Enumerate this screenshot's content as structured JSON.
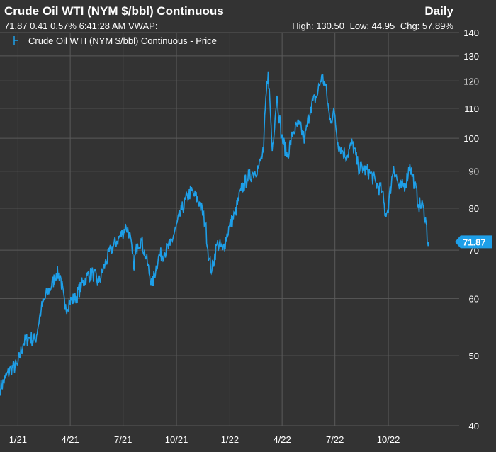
{
  "header": {
    "title": "Crude Oil WTI (NYM $/bbl) Continuous",
    "interval": "Daily",
    "last": "71.87",
    "change": "0.41",
    "change_pct": "0.57%",
    "time": "6:41:28 AM",
    "vwap_label": "VWAP:",
    "high": "High: 130.50",
    "low": "Low: 44.95",
    "chg": "Chg: 57.89%"
  },
  "legend": {
    "label": "Crude Oil WTI (NYM $/bbl) Continuous - Price"
  },
  "colors": {
    "background": "#333333",
    "line": "#1E9FE8",
    "grid": "#5a5a5a",
    "text": "#ffffff"
  },
  "chart_data": {
    "type": "line",
    "y_scale": "log",
    "ylim": [
      40,
      140
    ],
    "y_ticks": [
      40,
      50,
      60,
      70,
      80,
      90,
      100,
      110,
      120,
      130,
      140
    ],
    "x_ticks": [
      "1/21",
      "4/21",
      "7/21",
      "10/21",
      "1/22",
      "4/22",
      "7/22",
      "10/22"
    ],
    "xlim": [
      "2020-12-01",
      "2023-01-31"
    ],
    "last_value_label": "71.87",
    "series": [
      {
        "name": "Crude Oil WTI (NYM $/bbl) Continuous - Price",
        "points": [
          [
            "2020-12-01",
            45.0
          ],
          [
            "2020-12-10",
            46.5
          ],
          [
            "2020-12-20",
            48.0
          ],
          [
            "2020-12-31",
            48.5
          ],
          [
            "2021-01-10",
            52.0
          ],
          [
            "2021-01-20",
            53.0
          ],
          [
            "2021-01-31",
            52.5
          ],
          [
            "2021-02-10",
            58.0
          ],
          [
            "2021-02-20",
            61.0
          ],
          [
            "2021-02-28",
            62.5
          ],
          [
            "2021-03-08",
            65.0
          ],
          [
            "2021-03-15",
            64.5
          ],
          [
            "2021-03-23",
            58.0
          ],
          [
            "2021-03-31",
            59.5
          ],
          [
            "2021-04-10",
            60.0
          ],
          [
            "2021-04-20",
            62.5
          ],
          [
            "2021-04-30",
            64.5
          ],
          [
            "2021-05-10",
            65.0
          ],
          [
            "2021-05-20",
            63.0
          ],
          [
            "2021-05-31",
            67.0
          ],
          [
            "2021-06-10",
            70.0
          ],
          [
            "2021-06-20",
            72.0
          ],
          [
            "2021-06-30",
            74.0
          ],
          [
            "2021-07-06",
            75.5
          ],
          [
            "2021-07-12",
            74.0
          ],
          [
            "2021-07-19",
            66.5
          ],
          [
            "2021-07-26",
            71.5
          ],
          [
            "2021-08-01",
            72.5
          ],
          [
            "2021-08-10",
            68.0
          ],
          [
            "2021-08-20",
            62.5
          ],
          [
            "2021-08-31",
            68.5
          ],
          [
            "2021-09-10",
            69.5
          ],
          [
            "2021-09-20",
            71.0
          ],
          [
            "2021-09-30",
            75.0
          ],
          [
            "2021-10-10",
            79.5
          ],
          [
            "2021-10-20",
            83.0
          ],
          [
            "2021-10-26",
            84.5
          ],
          [
            "2021-10-31",
            83.5
          ],
          [
            "2021-11-10",
            81.5
          ],
          [
            "2021-11-20",
            76.0
          ],
          [
            "2021-11-26",
            68.0
          ],
          [
            "2021-12-01",
            65.5
          ],
          [
            "2021-12-10",
            71.5
          ],
          [
            "2021-12-20",
            70.0
          ],
          [
            "2021-12-31",
            75.5
          ],
          [
            "2022-01-10",
            78.5
          ],
          [
            "2022-01-20",
            84.5
          ],
          [
            "2022-01-31",
            88.0
          ],
          [
            "2022-02-10",
            89.5
          ],
          [
            "2022-02-20",
            91.5
          ],
          [
            "2022-02-28",
            95.5
          ],
          [
            "2022-03-03",
            110.0
          ],
          [
            "2022-03-08",
            123.7
          ],
          [
            "2022-03-15",
            96.0
          ],
          [
            "2022-03-23",
            114.5
          ],
          [
            "2022-03-31",
            100.5
          ],
          [
            "2022-04-10",
            94.5
          ],
          [
            "2022-04-20",
            102.0
          ],
          [
            "2022-04-30",
            104.5
          ],
          [
            "2022-05-10",
            99.5
          ],
          [
            "2022-05-20",
            110.5
          ],
          [
            "2022-05-31",
            114.5
          ],
          [
            "2022-06-08",
            122.0
          ],
          [
            "2022-06-15",
            118.0
          ],
          [
            "2022-06-22",
            106.0
          ],
          [
            "2022-06-30",
            108.5
          ],
          [
            "2022-07-06",
            98.5
          ],
          [
            "2022-07-14",
            96.0
          ],
          [
            "2022-07-22",
            94.5
          ],
          [
            "2022-07-31",
            98.5
          ],
          [
            "2022-08-10",
            91.5
          ],
          [
            "2022-08-20",
            90.5
          ],
          [
            "2022-08-31",
            89.5
          ],
          [
            "2022-09-10",
            86.5
          ],
          [
            "2022-09-20",
            84.5
          ],
          [
            "2022-09-26",
            78.5
          ],
          [
            "2022-09-30",
            79.5
          ],
          [
            "2022-10-10",
            91.5
          ],
          [
            "2022-10-20",
            85.0
          ],
          [
            "2022-10-31",
            86.5
          ],
          [
            "2022-11-07",
            92.0
          ],
          [
            "2022-11-15",
            86.5
          ],
          [
            "2022-11-22",
            81.0
          ],
          [
            "2022-11-30",
            80.5
          ],
          [
            "2022-12-05",
            76.5
          ],
          [
            "2022-12-08",
            71.5
          ],
          [
            "2022-12-09",
            71.87
          ]
        ]
      }
    ]
  }
}
